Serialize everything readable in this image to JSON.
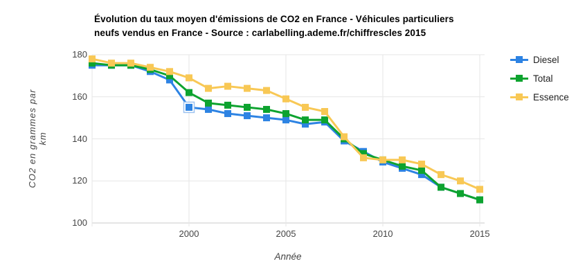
{
  "chart_data": {
    "type": "line",
    "title": "Évolution du taux moyen d'émissions de CO2 en France - Véhicules particuliers neufs vendus en France - Source : carlabelling.ademe.fr/chiffrescles 2015",
    "title_lines": [
      "Évolution du taux moyen d'émissions de CO2 en France - Véhicules particuliers",
      "neufs vendus en France - Source : carlabelling.ademe.fr/chiffrescles 2015"
    ],
    "xlabel": "Année",
    "ylabel": "CO2 en grammes par km",
    "x": [
      1995,
      1996,
      1997,
      1998,
      1999,
      2000,
      2001,
      2002,
      2003,
      2004,
      2005,
      2006,
      2007,
      2008,
      2009,
      2010,
      2011,
      2012,
      2013,
      2014,
      2015
    ],
    "x_ticks": [
      2000,
      2005,
      2010,
      2015
    ],
    "y_ticks": [
      180,
      160,
      140,
      120,
      100
    ],
    "ylim": [
      100,
      180
    ],
    "grid": true,
    "legend_position": "right",
    "series": [
      {
        "name": "Diesel",
        "color": "#2d83e3",
        "values": [
          175,
          175,
          175,
          172,
          168,
          155,
          154,
          152,
          151,
          150,
          149,
          147,
          148,
          139,
          134,
          129,
          126,
          123,
          117,
          114,
          111
        ]
      },
      {
        "name": "Total",
        "color": "#0da32f",
        "values": [
          176,
          175,
          175,
          173,
          170,
          162,
          157,
          156,
          155,
          154,
          152,
          149,
          149,
          140,
          133,
          130,
          127,
          125,
          117,
          114,
          111
        ]
      },
      {
        "name": "Essence",
        "color": "#f8c855",
        "values": [
          178,
          176,
          176,
          174,
          172,
          169,
          164,
          165,
          164,
          163,
          159,
          155,
          153,
          141,
          131,
          130,
          130,
          128,
          123,
          120,
          116
        ]
      }
    ],
    "highlighted_point": {
      "series": "Diesel",
      "year": 2000,
      "value": 155
    },
    "colors": {
      "grid": "#e6e6e6",
      "baseline": "#c9c9c9",
      "highlight_ring": "#9dc2f0"
    }
  }
}
